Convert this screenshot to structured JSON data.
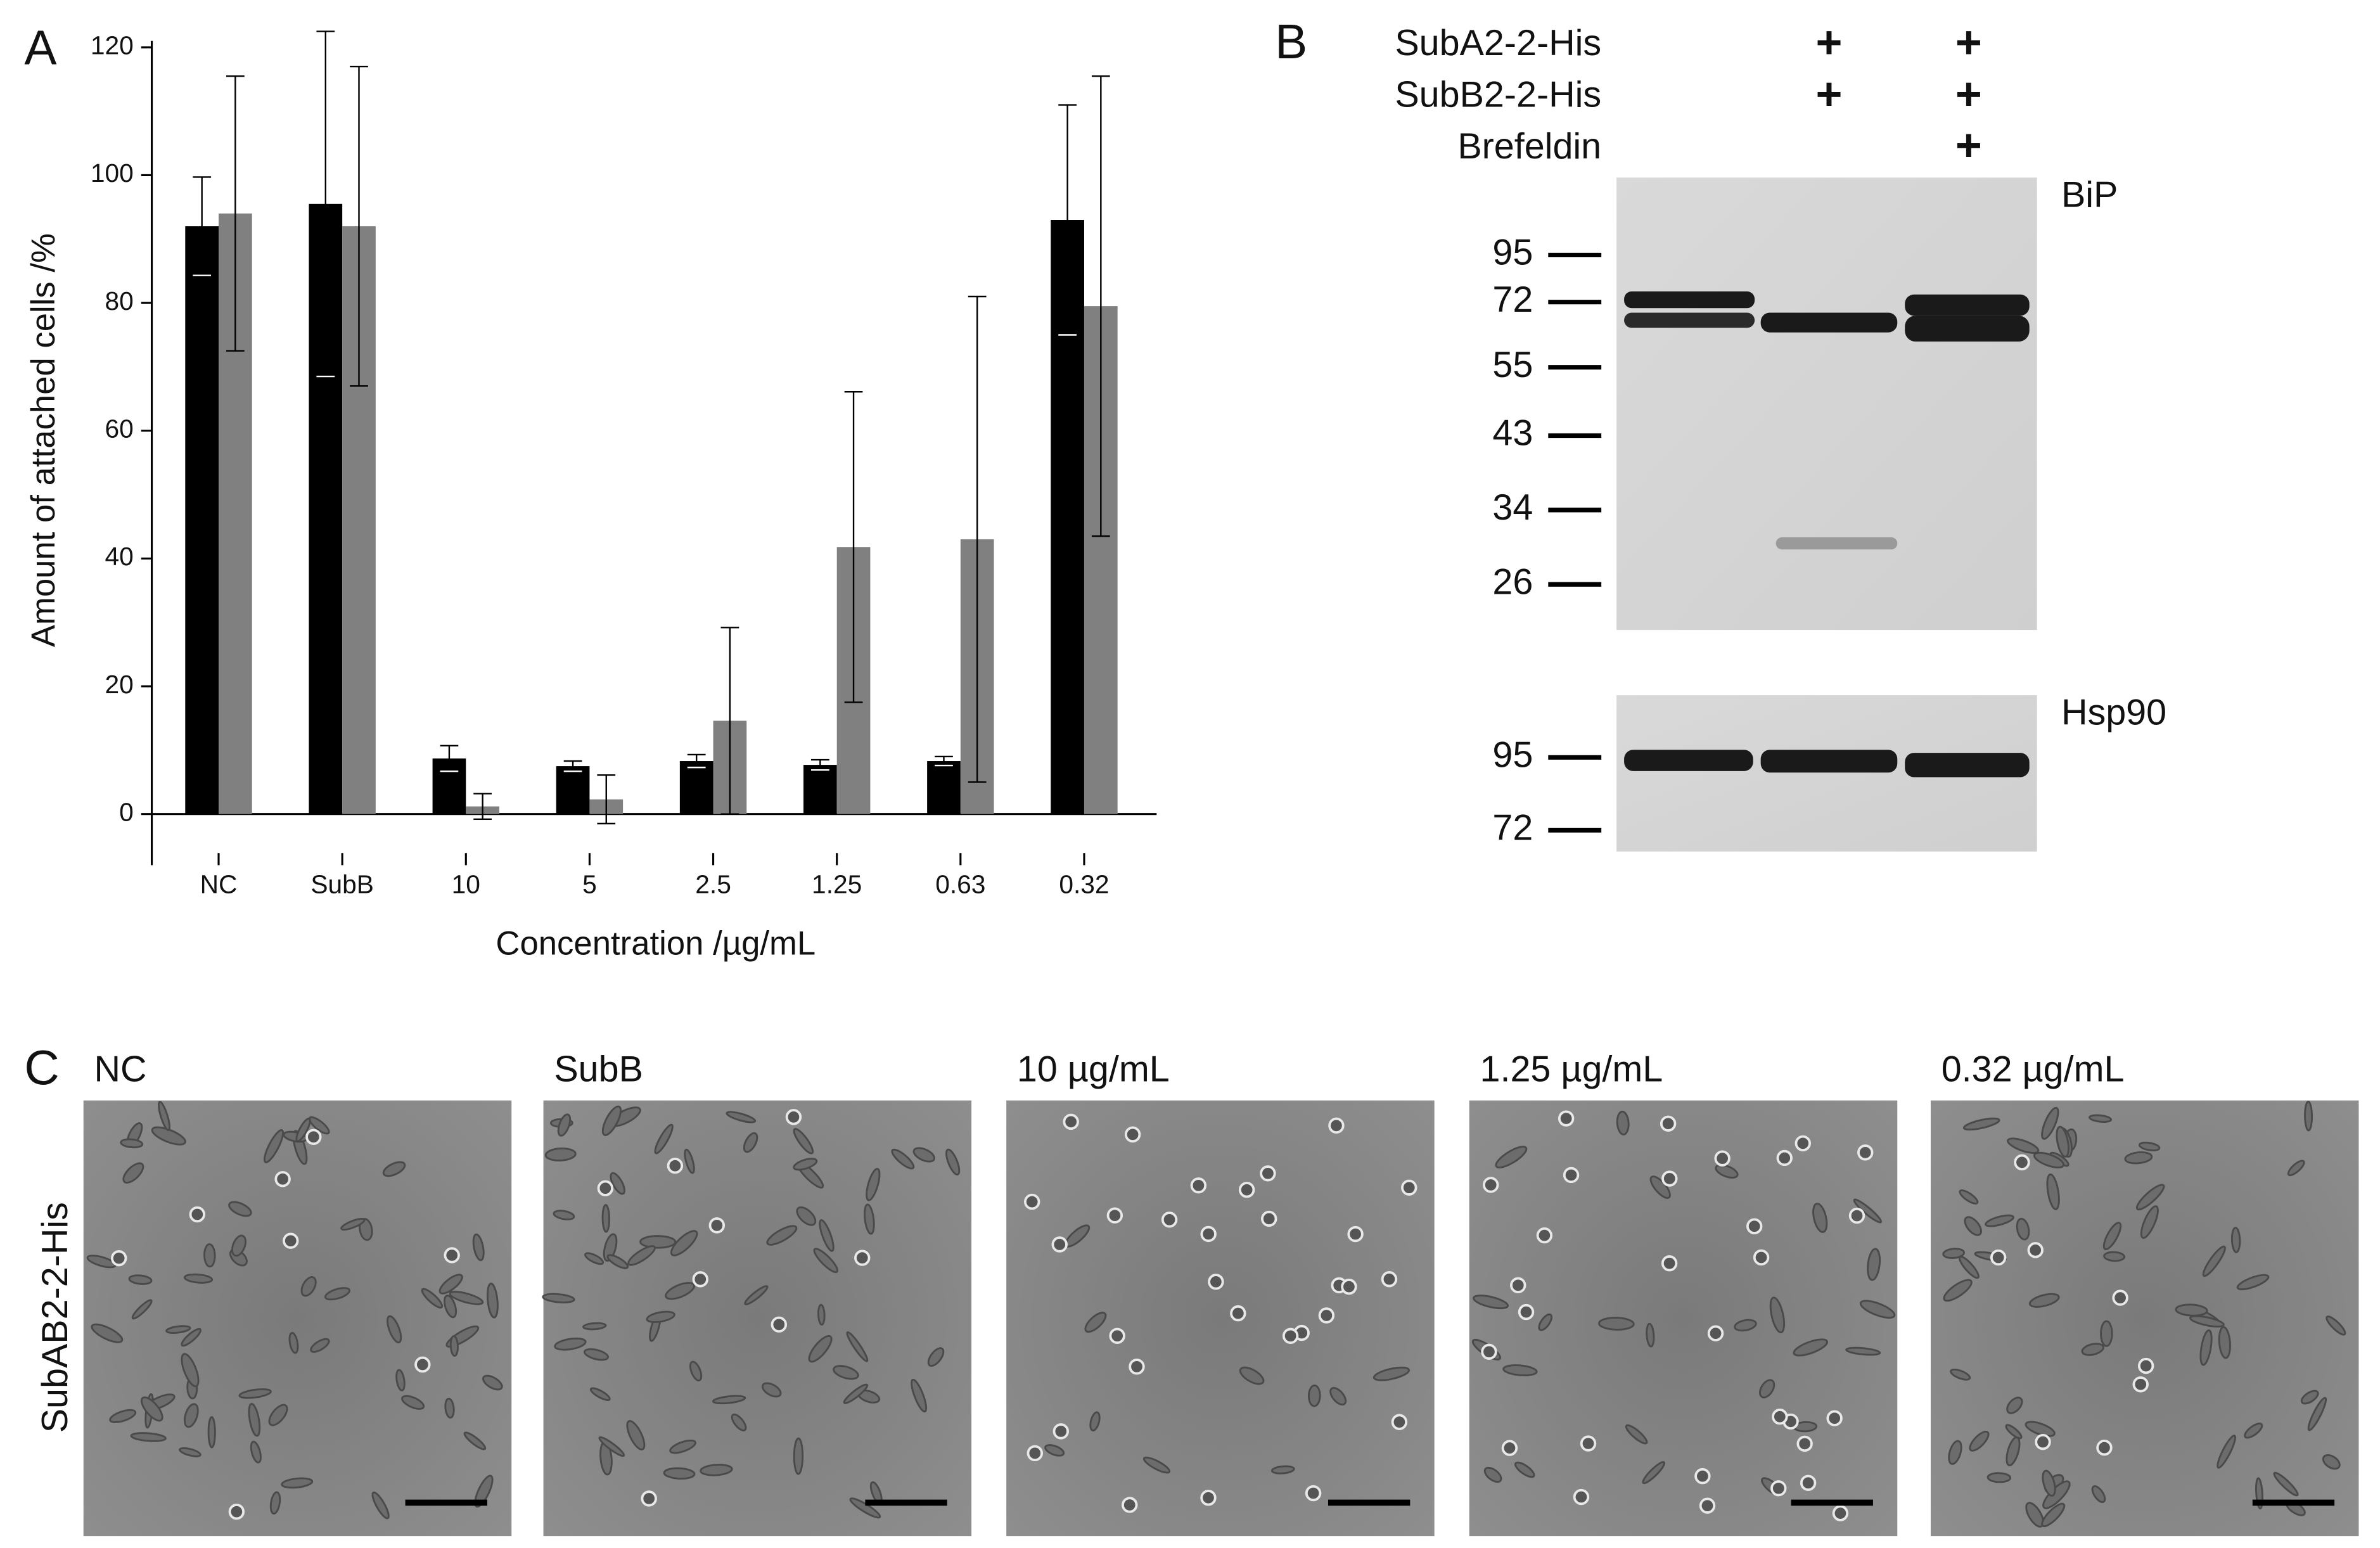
{
  "chart_data": {
    "type": "bar",
    "panel_label": "A",
    "y_label": "Amount of attached cells /%",
    "x_label": "Concentration /µg/mL",
    "categories": [
      "NC",
      "SubB",
      "10",
      "5",
      "2.5",
      "1.25",
      "0.63",
      "0.32"
    ],
    "series": [
      {
        "color": "#000000",
        "values": [
          92,
          95.5,
          8.7,
          7.5,
          8.3,
          7.7,
          8.3,
          93
        ],
        "errors": [
          7.7,
          27,
          2,
          0.8,
          1,
          0.8,
          0.7,
          18
        ]
      },
      {
        "color": "#808080",
        "values": [
          94,
          92,
          1.2,
          2.3,
          14.6,
          41.8,
          43,
          79.5
        ],
        "errors": [
          21.5,
          25,
          2,
          3.8,
          14.6,
          24.3,
          38,
          36
        ]
      }
    ],
    "ylim": [
      -8,
      121
    ],
    "yticks": [
      0,
      20,
      40,
      60,
      80,
      100,
      120
    ]
  },
  "blot": {
    "panel_label": "B",
    "treatments": [
      {
        "label": "SubA2-2-His",
        "signs": [
          "+",
          "+"
        ]
      },
      {
        "label": "SubB2-2-His",
        "signs": [
          "+",
          "+"
        ]
      },
      {
        "label": "Brefeldin",
        "signs": [
          "+"
        ]
      }
    ],
    "panels": [
      {
        "name": "BiP",
        "markers": [
          95,
          72,
          55,
          43,
          34,
          26
        ]
      },
      {
        "name": "Hsp90",
        "markers": [
          95,
          72
        ]
      }
    ]
  },
  "micrographs": {
    "panel_label": "C",
    "row_label": "SubAB2-2-His",
    "columns": [
      "NC",
      "SubB",
      "10 µg/mL",
      "1.25 µg/mL",
      "0.32 µg/mL"
    ]
  }
}
